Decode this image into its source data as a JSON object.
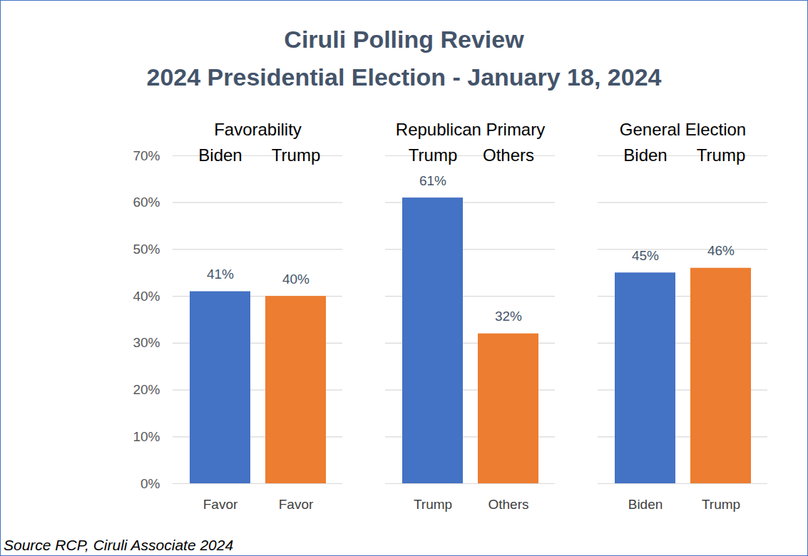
{
  "chart_data": {
    "type": "bar",
    "title": "Ciruli Polling Review",
    "subtitle": "2024 Presidential Election - January 18, 2024",
    "groups": [
      {
        "title": "Favorability",
        "labels": [
          "Biden",
          "Trump"
        ]
      },
      {
        "title": "Republican Primary",
        "labels": [
          "Trump",
          "Others"
        ]
      },
      {
        "title": "General Election",
        "labels": [
          "Biden",
          "Trump"
        ]
      }
    ],
    "categories": [
      "Favor",
      "Favor",
      "Trump",
      "Others",
      "Biden",
      "Trump"
    ],
    "values": [
      41,
      40,
      61,
      32,
      45,
      46
    ],
    "value_labels": [
      "41%",
      "40%",
      "61%",
      "32%",
      "45%",
      "46%"
    ],
    "colors": [
      "#4472C4",
      "#ED7D31",
      "#4472C4",
      "#ED7D31",
      "#4472C4",
      "#ED7D31"
    ],
    "ylim": [
      0,
      70
    ],
    "yticks": [
      {
        "value": 0,
        "label": "0%"
      },
      {
        "value": 10,
        "label": "10%"
      },
      {
        "value": 20,
        "label": "20%"
      },
      {
        "value": 30,
        "label": "30%"
      },
      {
        "value": 40,
        "label": "40%"
      },
      {
        "value": 50,
        "label": "50%"
      },
      {
        "value": 60,
        "label": "60%"
      },
      {
        "value": 70,
        "label": "70%"
      }
    ],
    "grid": true,
    "data_labels": true,
    "caption": "Source RCP, Ciruli Associate 2024"
  }
}
